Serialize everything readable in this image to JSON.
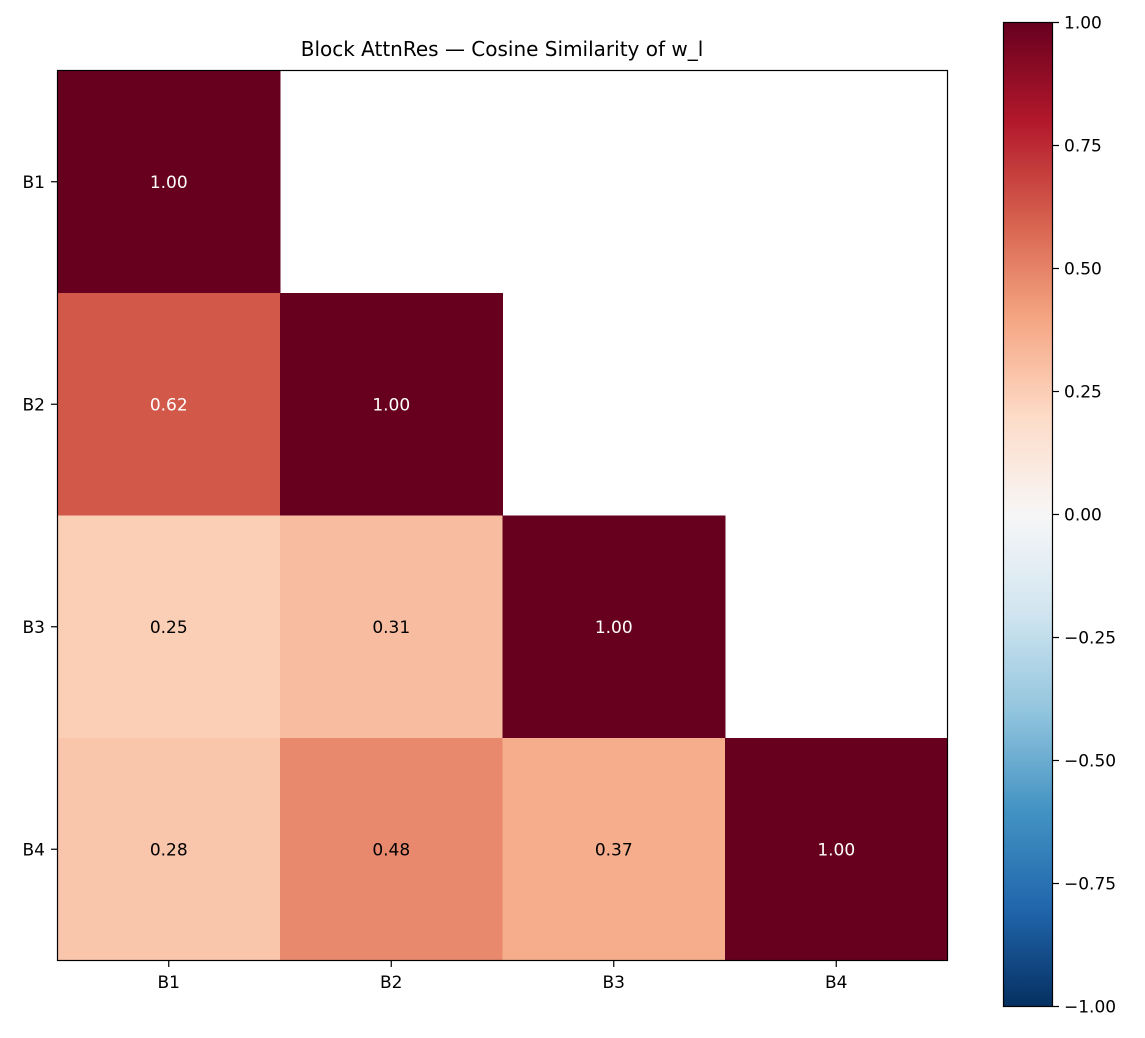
{
  "chart_data": {
    "type": "heatmap",
    "title": "Block AttnRes — Cosine Similarity of w_l",
    "xlabel": "",
    "ylabel": "",
    "x_categories": [
      "B1",
      "B2",
      "B3",
      "B4"
    ],
    "y_categories": [
      "B1",
      "B2",
      "B3",
      "B4"
    ],
    "values": [
      [
        1.0,
        null,
        null,
        null
      ],
      [
        0.62,
        1.0,
        null,
        null
      ],
      [
        0.25,
        0.31,
        1.0,
        null
      ],
      [
        0.28,
        0.48,
        0.37,
        1.0
      ]
    ],
    "colormap": "RdBu_r",
    "vmin": -1.0,
    "vmax": 1.0,
    "colorbar_ticks": [
      "1.00",
      "0.75",
      "0.50",
      "0.25",
      "0.00",
      "−0.25",
      "−0.50",
      "−0.75",
      "−1.00"
    ],
    "colorbar_tick_values": [
      1.0,
      0.75,
      0.5,
      0.25,
      0.0,
      -0.25,
      -0.5,
      -0.75,
      -1.0
    ],
    "grid": false,
    "legend": "colorbar-right"
  }
}
